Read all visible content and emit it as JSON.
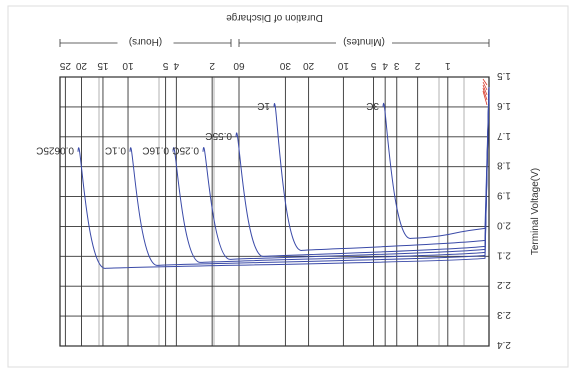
{
  "chart_data": {
    "type": "line",
    "orientation": "rotated 180",
    "title": "",
    "xlabel": "Duration of Discharge",
    "ylabel": "Terminal Voltage(V)",
    "x_sections": [
      {
        "label": "(Minutes)",
        "ticks": [
          "1",
          "2",
          "3",
          "4",
          "5",
          "10",
          "20",
          "30",
          "60"
        ]
      },
      {
        "label": "(Hours)",
        "ticks": [
          "2",
          "4",
          "5",
          "10",
          "15",
          "20",
          "25"
        ]
      }
    ],
    "y_ticks": [
      "1.5",
      "1.6",
      "1.7",
      "1.8",
      "1.9",
      "2.0",
      "2.1",
      "2.2",
      "2.3",
      "2.4"
    ],
    "ylim": [
      1.5,
      2.4
    ],
    "grid": true,
    "series": [
      {
        "name": "3C",
        "color": "#3a4aa8",
        "end_v": 1.6
      },
      {
        "name": "1C",
        "color": "#3a4aa8",
        "end_v": 1.6
      },
      {
        "name": "0.55C",
        "color": "#3a4aa8",
        "end_v": 1.7
      },
      {
        "name": "0.25C",
        "color": "#3a4aa8",
        "end_v": 1.75
      },
      {
        "name": "0.16C",
        "color": "#3a4aa8",
        "end_v": 1.75
      },
      {
        "name": "0.1C",
        "color": "#3a4aa8",
        "end_v": 1.75
      },
      {
        "name": "0.0625C",
        "color": "#3a4aa8",
        "end_v": 1.75
      }
    ]
  }
}
